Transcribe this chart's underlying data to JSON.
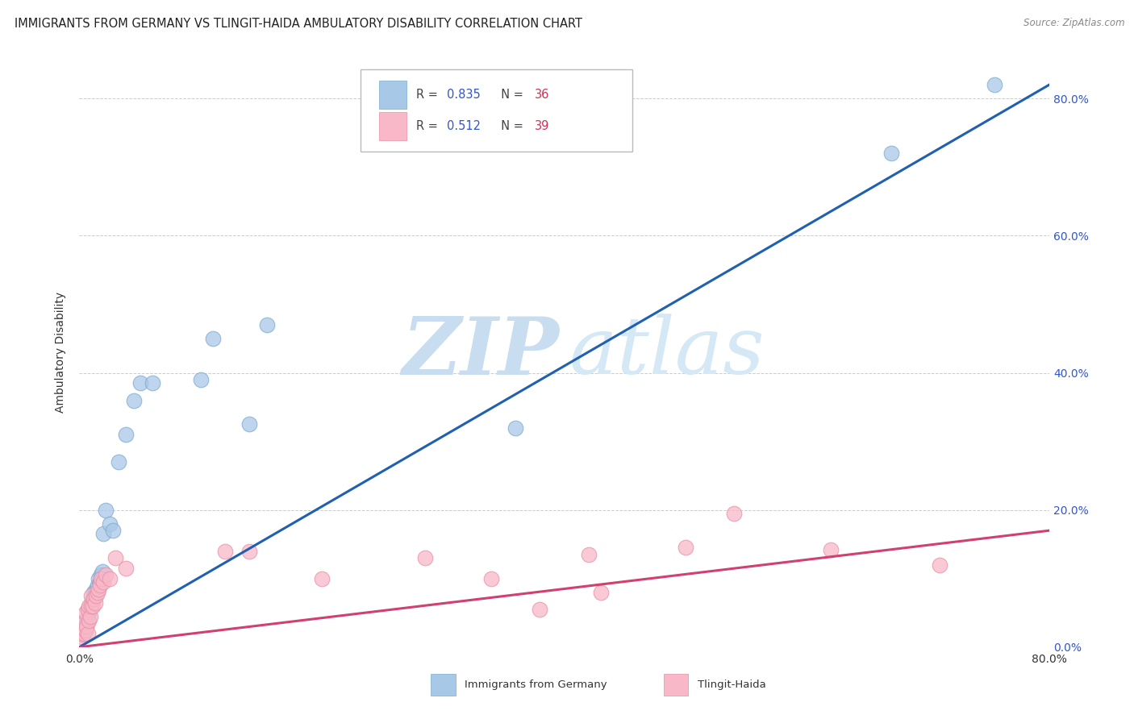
{
  "title": "IMMIGRANTS FROM GERMANY VS TLINGIT-HAIDA AMBULATORY DISABILITY CORRELATION CHART",
  "source": "Source: ZipAtlas.com",
  "ylabel": "Ambulatory Disability",
  "series1_label": "Immigrants from Germany",
  "series2_label": "Tlingit-Haida",
  "series1_color": "#a8c8e8",
  "series2_color": "#f8b8c8",
  "series1_edge_color": "#7aabce",
  "series2_edge_color": "#e890a8",
  "series1_line_color": "#2060b0",
  "series2_line_color": "#d04070",
  "series1_R": 0.835,
  "series1_N": 36,
  "series2_R": 0.512,
  "series2_N": 39,
  "legend_blue_color": "#3355cc",
  "legend_red_color": "#cc3355",
  "xlim": [
    0.0,
    0.8
  ],
  "ylim": [
    0.0,
    0.86
  ],
  "xtick_positions": [
    0.0,
    0.8
  ],
  "xtick_labels": [
    "0.0%",
    "80.0%"
  ],
  "ytick_positions": [
    0.0,
    0.2,
    0.4,
    0.6,
    0.8
  ],
  "ytick_labels": [
    "0.0%",
    "20.0%",
    "40.0%",
    "60.0%",
    "80.0%"
  ],
  "background_color": "#ffffff",
  "grid_color": "#cccccc",
  "series1_x": [
    0.003,
    0.004,
    0.004,
    0.005,
    0.005,
    0.006,
    0.007,
    0.007,
    0.008,
    0.009,
    0.01,
    0.011,
    0.012,
    0.013,
    0.014,
    0.015,
    0.016,
    0.017,
    0.018,
    0.019,
    0.02,
    0.022,
    0.025,
    0.028,
    0.032,
    0.038,
    0.045,
    0.05,
    0.06,
    0.1,
    0.11,
    0.14,
    0.155,
    0.36,
    0.67,
    0.755
  ],
  "series1_y": [
    0.02,
    0.022,
    0.03,
    0.025,
    0.04,
    0.03,
    0.04,
    0.055,
    0.05,
    0.06,
    0.065,
    0.07,
    0.08,
    0.08,
    0.085,
    0.09,
    0.1,
    0.095,
    0.105,
    0.11,
    0.165,
    0.2,
    0.18,
    0.17,
    0.27,
    0.31,
    0.36,
    0.385,
    0.385,
    0.39,
    0.45,
    0.325,
    0.47,
    0.32,
    0.72,
    0.82
  ],
  "series2_x": [
    0.002,
    0.003,
    0.004,
    0.004,
    0.005,
    0.005,
    0.006,
    0.007,
    0.007,
    0.008,
    0.008,
    0.009,
    0.01,
    0.01,
    0.011,
    0.012,
    0.013,
    0.014,
    0.015,
    0.016,
    0.017,
    0.018,
    0.02,
    0.022,
    0.025,
    0.03,
    0.038,
    0.12,
    0.14,
    0.2,
    0.285,
    0.34,
    0.38,
    0.42,
    0.43,
    0.5,
    0.54,
    0.62,
    0.71
  ],
  "series2_y": [
    0.015,
    0.018,
    0.02,
    0.035,
    0.025,
    0.05,
    0.03,
    0.02,
    0.055,
    0.038,
    0.06,
    0.045,
    0.06,
    0.075,
    0.06,
    0.07,
    0.065,
    0.075,
    0.08,
    0.085,
    0.09,
    0.1,
    0.095,
    0.105,
    0.1,
    0.13,
    0.115,
    0.14,
    0.14,
    0.1,
    0.13,
    0.1,
    0.055,
    0.135,
    0.08,
    0.145,
    0.195,
    0.142,
    0.12
  ],
  "line1_x0": 0.0,
  "line1_y0": 0.0,
  "line1_x1": 0.8,
  "line1_y1": 0.82,
  "line2_x0": 0.0,
  "line2_y0": 0.0,
  "line2_x1": 0.8,
  "line2_y1": 0.17
}
